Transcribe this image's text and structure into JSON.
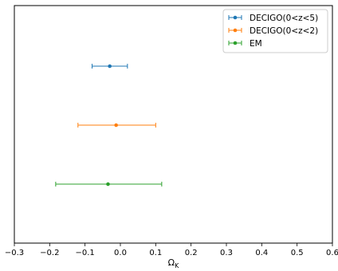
{
  "chart_data": {
    "type": "scatter",
    "title": "",
    "xlabel": "Ω",
    "xlabel_subscript": "K",
    "ylabel": "",
    "xlim": [
      -0.3,
      0.6
    ],
    "xticks": [
      -0.3,
      -0.2,
      -0.1,
      0.0,
      0.1,
      0.2,
      0.3,
      0.4,
      0.5,
      0.6
    ],
    "xtick_labels": [
      "−0.3",
      "−0.2",
      "−0.1",
      "0.0",
      "0.1",
      "0.2",
      "0.3",
      "0.4",
      "0.5",
      "0.6"
    ],
    "yticks_shown": false,
    "grid": false,
    "legend_position": "top-right",
    "series": [
      {
        "name": "DECIGO(0<z<5)",
        "x": -0.03,
        "xerr_low": 0.05,
        "xerr_high": 0.05,
        "color": "#1f77b4"
      },
      {
        "name": "DECIGO(0<z<2)",
        "x": -0.012,
        "xerr_low": 0.108,
        "xerr_high": 0.112,
        "color": "#ff7f0e"
      },
      {
        "name": "EM",
        "x": -0.035,
        "xerr_low": 0.148,
        "xerr_high": 0.152,
        "color": "#2ca02c"
      }
    ]
  }
}
